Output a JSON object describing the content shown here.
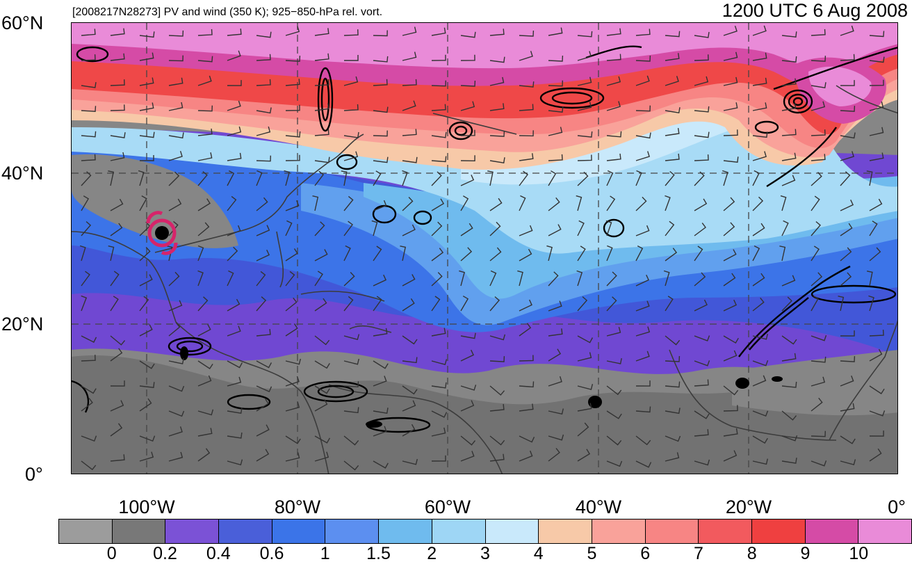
{
  "header": {
    "left_text": "[2008217N28273] PV and wind (350 K); 925−850-hPa rel. vort.",
    "right_text": "1200 UTC 6 Aug 2008"
  },
  "axes": {
    "lat_labels": [
      "60°N",
      "40°N",
      "20°N",
      "0°"
    ],
    "lon_labels": [
      "100°W",
      "80°W",
      "60°W",
      "40°W",
      "20°W",
      "0°"
    ]
  },
  "colorbar": {
    "labels": [
      "0",
      "0.2",
      "0.4",
      "0.6",
      "1",
      "1.5",
      "2",
      "3",
      "4",
      "5",
      "6",
      "7",
      "8",
      "9",
      "10"
    ],
    "colors": [
      "#9c9c9c",
      "#787878",
      "#7b52d6",
      "#4a5fd9",
      "#3b74e8",
      "#5c8ff0",
      "#6fbbee",
      "#9ed6f5",
      "#c9e9fb",
      "#f7c9a8",
      "#f9a29a",
      "#f78584",
      "#f25a5e",
      "#ef4040",
      "#d54ba6",
      "#e98bd8"
    ]
  },
  "map_colors": {
    "gray": "#868686",
    "dark_gray": "#727272",
    "purple": "#7048d2",
    "blue_dark": "#4257d8",
    "blue": "#3c74e8",
    "blue_light": "#61a0ee",
    "cyan": "#6fbbee",
    "light_cyan": "#a8dbf6",
    "pale": "#c9e9fb",
    "peach": "#f7c9a8",
    "pink": "#f9a29a",
    "salmon": "#f78584",
    "red": "#ef4848",
    "magenta": "#d54ba6",
    "light_magenta": "#e98bd8",
    "storm_symbol": "#d6246a"
  },
  "map_features": {
    "storm_marker": "tropical-storm-icon",
    "barb_style": "wind-barbs",
    "contour_style": "vorticity-contours"
  }
}
